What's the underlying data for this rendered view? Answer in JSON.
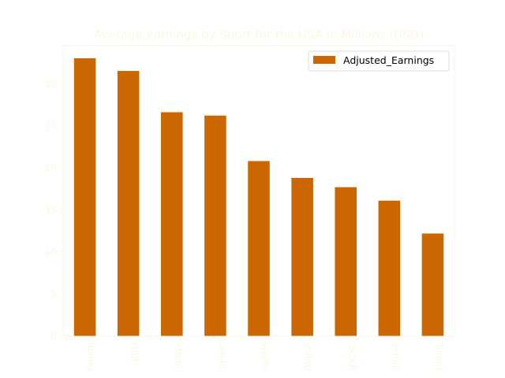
{
  "chart_data": {
    "type": "bar",
    "title": "Average earnings by Sport for the USA in Millions (USD)",
    "xlabel": "",
    "ylabel": "",
    "categories": [
      "Boxing",
      "Golf",
      "Basketball",
      "Football",
      "Motorsports",
      "Cycling",
      "NASCAR",
      "Baseball",
      "Tennis"
    ],
    "x_tick_labels_visible": [
      "loxing",
      "Golf",
      "etball",
      "otball",
      "sports",
      "ycling",
      "ISCAR",
      "seball",
      "Tennis"
    ],
    "series": [
      {
        "name": "Adjusted_Earnings",
        "color": "#cc6600",
        "values": [
          33.0,
          31.5,
          26.6,
          26.2,
          20.8,
          18.8,
          17.7,
          16.1,
          12.2
        ]
      }
    ],
    "ylim": [
      0,
      34.5
    ],
    "yticks": [
      0,
      5,
      10,
      15,
      20,
      25,
      30
    ],
    "grid": false,
    "legend_position": "top-right",
    "colors": {
      "text": "#fdf6e3",
      "axes": "#fdf6e3",
      "bar": "#cc6600"
    }
  }
}
